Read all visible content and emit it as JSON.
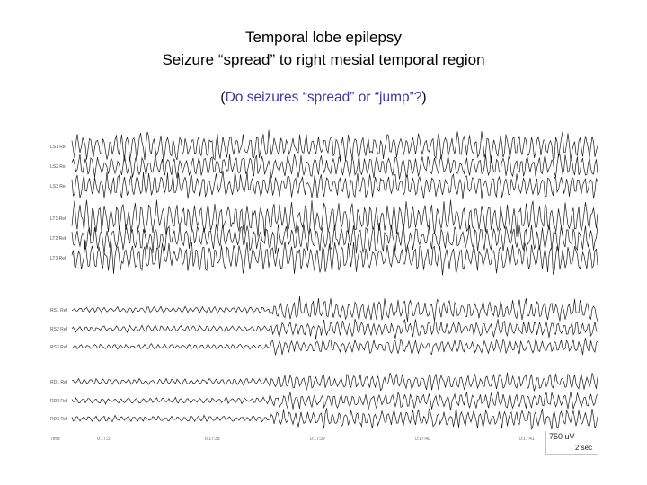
{
  "slide": {
    "title_line1": "Temporal lobe epilepsy",
    "title_line2": "Seizure “spread” to right mesial temporal region",
    "subtitle_open": "(",
    "subtitle_text": "Do seizures “spread” or “jump”?",
    "subtitle_close": ")"
  },
  "eeg": {
    "channel_labels": [
      "LS1 Ref",
      "LS2 Ref",
      "LS3 Ref",
      "LT1 Ref",
      "LT2 Ref",
      "LT3 Ref",
      "RS1 Ref",
      "RS2 Ref",
      "RS3 Ref",
      "RD1 Ref",
      "RD2 Ref",
      "RD3 Ref"
    ],
    "time_axis_label": "Time",
    "time_ticks": [
      "0:17:37",
      "0:17:38",
      "0:17:39",
      "0:17:40",
      "0:17:41"
    ],
    "scale_amplitude": "750 uV",
    "scale_time": "2 sec",
    "trace_color": "#1a1a1a"
  }
}
